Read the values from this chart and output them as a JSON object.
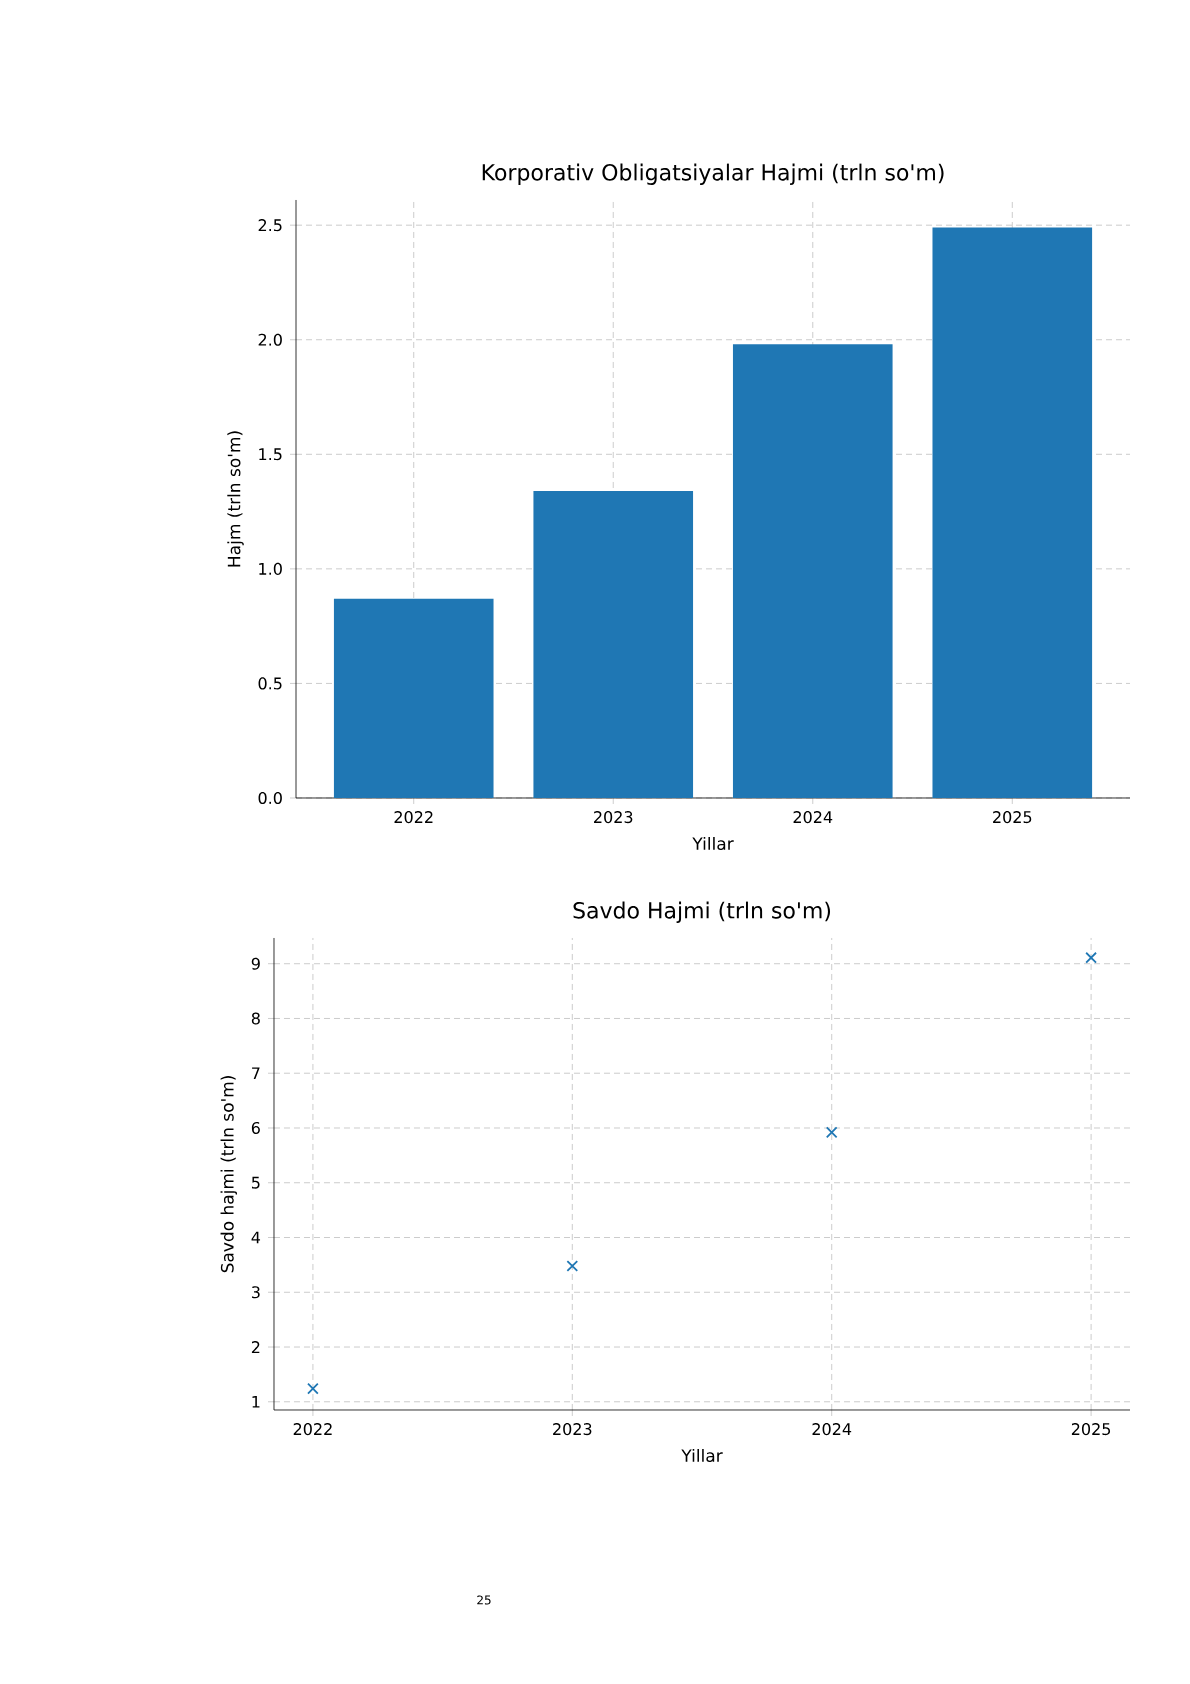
{
  "chart_data": [
    {
      "type": "bar",
      "title": "Korporativ Obligatsiyalar Hajmi (trln so'm)",
      "xlabel": "Yillar",
      "ylabel": "Hajm (trln so'm)",
      "categories": [
        "2022",
        "2023",
        "2024",
        "2025"
      ],
      "values": [
        0.87,
        1.34,
        1.98,
        2.49
      ],
      "color": "#1f77b4",
      "ylim": [
        0,
        2.61
      ],
      "yticks": [
        {
          "value": 0,
          "label": "0.0"
        },
        {
          "value": 0.5,
          "label": "0.5"
        },
        {
          "value": 1,
          "label": "1.0"
        },
        {
          "value": 1.5,
          "label": "1.5"
        },
        {
          "value": 2,
          "label": "2.0"
        },
        {
          "value": 2.5,
          "label": "2.5"
        }
      ],
      "grid": true
    },
    {
      "type": "scatter",
      "title": "Savdo Hajmi (trln so'm)",
      "xlabel": "Yillar",
      "ylabel": "Savdo hajmi (trln so'm)",
      "x": [
        2022,
        2023,
        2024,
        2025
      ],
      "values": [
        1.24,
        3.48,
        5.92,
        9.11
      ],
      "color": "#1f77b4",
      "marker": "cross",
      "xlim": [
        2021.85,
        2025.15
      ],
      "xticks": [
        2022,
        2023,
        2024,
        2025
      ],
      "ylim": [
        0.85,
        9.47
      ],
      "yticks": [
        1,
        2,
        3,
        4,
        5,
        6,
        7,
        8,
        9
      ],
      "grid": true,
      "annotations": [
        "25"
      ]
    }
  ]
}
